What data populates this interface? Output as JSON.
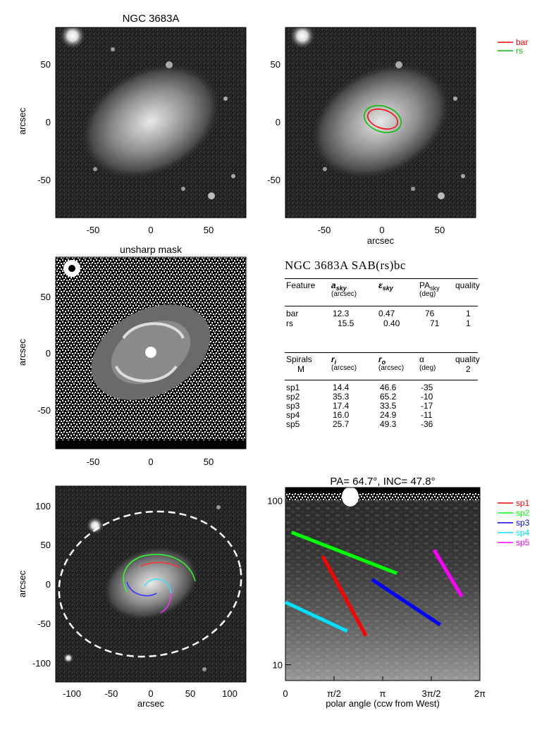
{
  "colors": {
    "bar": "#ff0000",
    "rs": "#00c000",
    "sp1": "#ff0000",
    "sp2": "#00ff00",
    "sp3": "#0000ff",
    "sp4": "#00e0ff",
    "sp5": "#ff00ff"
  },
  "panel1": {
    "title": "NGC 3683A",
    "ylabel": "arcsec",
    "yticks": [
      "50",
      "0",
      "-50"
    ],
    "xticks": [
      "-50",
      "0",
      "50"
    ]
  },
  "panel2": {
    "xlabel": "arcsec",
    "yticks": [
      "50",
      "0",
      "-50"
    ],
    "xticks": [
      "-50",
      "0",
      "50"
    ],
    "legend": [
      "bar",
      "rs"
    ]
  },
  "panel3": {
    "title": "unsharp mask",
    "ylabel": "arcsec",
    "yticks": [
      "50",
      "0",
      "-50"
    ],
    "xticks": [
      "-50",
      "0",
      "50"
    ]
  },
  "table": {
    "title": "NGC 3683A SAB(rs)bc",
    "features_header": {
      "c1": "Feature",
      "c2": "a",
      "c2_sub": "sky",
      "c2_unit": "(arcsec)",
      "c3": "ε",
      "c3_sub": "sky",
      "c4": "PA",
      "c4_sub": "sky",
      "c4_unit": "(deg)",
      "c5": "quality"
    },
    "features": [
      {
        "name": "bar",
        "a": "12.3",
        "e": "0.47",
        "pa": "76",
        "q": "1"
      },
      {
        "name": "rs",
        "a": "15.5",
        "e": "0.40",
        "pa": "71",
        "q": "1"
      }
    ],
    "spirals_header": {
      "c1": "Spirals",
      "c1b": "M",
      "c2": "r",
      "c2_sub": "i",
      "c2_unit": "(arcsec)",
      "c3": "r",
      "c3_sub": "o",
      "c3_unit": "(arcsec)",
      "c4": "α",
      "c4_unit": "(deg)",
      "c5": "quality",
      "c5b": "2"
    },
    "spirals": [
      {
        "name": "sp1",
        "ri": "14.4",
        "ro": "46.6",
        "alpha": "-35"
      },
      {
        "name": "sp2",
        "ri": "35.3",
        "ro": "65.2",
        "alpha": "-10"
      },
      {
        "name": "sp3",
        "ri": "17.4",
        "ro": "33.5",
        "alpha": "-17"
      },
      {
        "name": "sp4",
        "ri": "16.0",
        "ro": "24.9",
        "alpha": "-11"
      },
      {
        "name": "sp5",
        "ri": "25.7",
        "ro": "49.3",
        "alpha": "-36"
      }
    ]
  },
  "panel5": {
    "ylabel": "arcsec",
    "xlabel": "arcsec",
    "yticks": [
      "100",
      "50",
      "0",
      "-50",
      "-100"
    ],
    "xticks": [
      "-100",
      "-50",
      "0",
      "50",
      "100"
    ]
  },
  "chart_data": {
    "type": "line",
    "title": "PA= 64.7°, INC= 47.8°",
    "xlabel": "polar angle (ccw from West)",
    "ylabel": "",
    "xtick_labels": [
      "0",
      "π/2",
      "π",
      "3π/2",
      "2π"
    ],
    "xlim": [
      0,
      6.2832
    ],
    "ytick_labels": [
      "100",
      "10"
    ],
    "ylim": [
      8,
      120
    ],
    "yscale": "log",
    "legend_position": "right",
    "series": [
      {
        "name": "sp1",
        "x": [
          1.2,
          2.6
        ],
        "y": [
          46,
          15
        ]
      },
      {
        "name": "sp2",
        "x": [
          0.2,
          3.6
        ],
        "y": [
          64,
          36
        ]
      },
      {
        "name": "sp3",
        "x": [
          2.8,
          5.0
        ],
        "y": [
          33,
          17.5
        ]
      },
      {
        "name": "sp4",
        "x": [
          0.0,
          2.0
        ],
        "y": [
          24,
          16
        ]
      },
      {
        "name": "sp5",
        "x": [
          4.8,
          5.7
        ],
        "y": [
          50,
          26
        ]
      }
    ]
  }
}
